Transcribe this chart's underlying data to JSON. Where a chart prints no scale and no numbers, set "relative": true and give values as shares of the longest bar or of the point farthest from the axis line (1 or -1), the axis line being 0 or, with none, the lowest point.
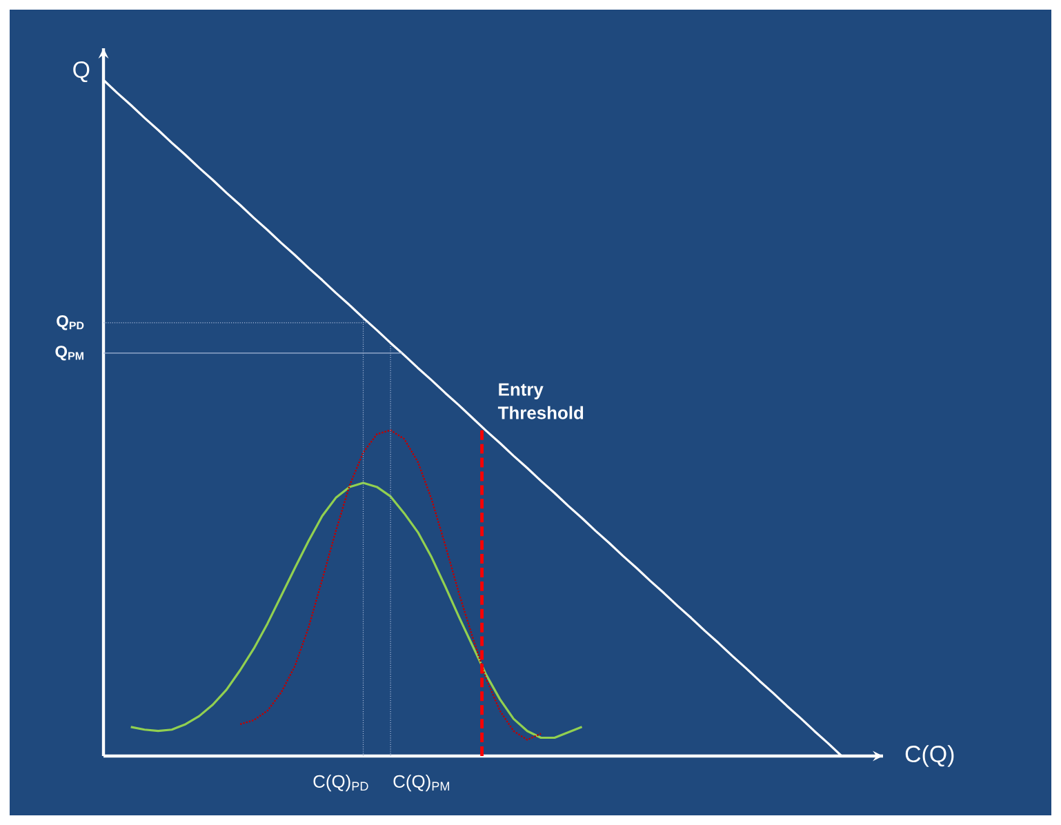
{
  "chart_data": {
    "type": "line",
    "relative": true,
    "xlabel": "C(Q)",
    "ylabel": "Q",
    "categories": [
      null,
      null,
      null,
      null,
      null,
      null,
      null,
      null,
      null,
      null,
      null,
      null,
      null,
      null,
      null,
      null,
      null,
      null,
      null,
      null,
      null,
      null,
      null,
      null,
      null,
      null,
      null,
      null,
      null,
      null,
      null,
      null,
      null,
      null,
      null,
      null,
      null,
      null,
      null,
      null,
      null,
      null,
      null,
      null,
      null,
      null,
      null,
      null,
      null,
      null,
      null,
      null,
      null,
      null,
      null
    ],
    "marker": "none",
    "series": [
      {
        "color": "#ffffff",
        "line_style": "solid",
        "values": [
          1,
          0.981,
          0.963,
          0.944,
          0.926,
          0.907,
          0.889,
          0.87,
          0.852,
          0.833,
          0.815,
          0.796,
          0.778,
          0.759,
          0.741,
          0.722,
          0.704,
          0.685,
          0.667,
          0.648,
          0.63,
          0.611,
          0.593,
          0.574,
          0.556,
          0.537,
          0.519,
          0.5,
          0.481,
          0.463,
          0.444,
          0.426,
          0.407,
          0.389,
          0.37,
          0.352,
          0.333,
          0.315,
          0.296,
          0.278,
          0.259,
          0.241,
          0.222,
          0.204,
          0.185,
          0.167,
          0.148,
          0.13,
          0.111,
          0.093,
          0.074,
          0.056,
          0.037,
          0.019,
          0
        ]
      },
      {
        "color": "#92d050",
        "line_style": "solid",
        "values": [
          null,
          null,
          0.043,
          0.039,
          0.037,
          0.039,
          0.047,
          0.059,
          0.076,
          0.098,
          0.127,
          0.159,
          0.196,
          0.237,
          0.278,
          0.318,
          0.355,
          0.382,
          0.398,
          0.404,
          0.398,
          0.384,
          0.359,
          0.331,
          0.294,
          0.251,
          0.206,
          0.163,
          0.12,
          0.084,
          0.055,
          0.037,
          0.027,
          0.027,
          0.035,
          0.043,
          null,
          null,
          null,
          null,
          null,
          null,
          null,
          null,
          null,
          null,
          null,
          null,
          null,
          null,
          null,
          null,
          null,
          null,
          null
        ]
      },
      {
        "color": "#c00000",
        "line_style": "dotted",
        "values": [
          null,
          null,
          null,
          null,
          null,
          null,
          null,
          null,
          null,
          null,
          0.047,
          0.053,
          0.067,
          0.094,
          0.133,
          0.19,
          0.261,
          0.333,
          0.4,
          0.449,
          0.476,
          0.482,
          0.469,
          0.435,
          0.38,
          0.312,
          0.241,
          0.176,
          0.114,
          0.067,
          0.037,
          0.024,
          0.033,
          null,
          null,
          null,
          null,
          null,
          null,
          null,
          null,
          null,
          null,
          null,
          null,
          null,
          null,
          null,
          null,
          null,
          null,
          null,
          null,
          null,
          null
        ]
      }
    ],
    "ref_lines": [
      {
        "axis": "y",
        "value": 0.641,
        "label": "Q$_{PD}$",
        "color": "#a6b8d8",
        "line_style": "dotted"
      },
      {
        "axis": "y",
        "value": 0.596,
        "label": "Q$_{PM}$",
        "color": "#a6b8d8",
        "line_style": "solid"
      }
    ],
    "annotations": [
      "C(Q)$_{PD}$",
      "C(Q)$_{PM}$",
      "Entry Threshold"
    ]
  }
}
